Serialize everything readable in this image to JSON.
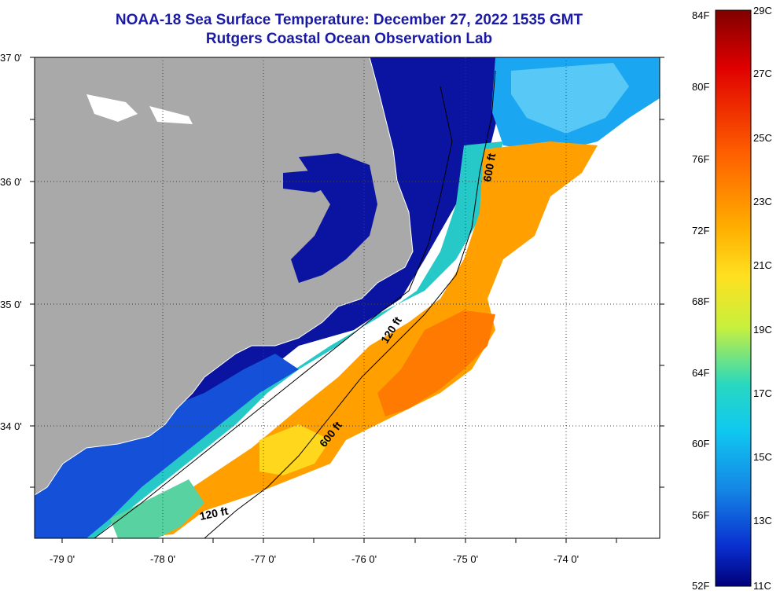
{
  "title": {
    "line1": "NOAA-18 Sea Surface Temperature:  December 27, 2022 1535 GMT",
    "line2": "Rutgers Coastal Ocean Observation Lab"
  },
  "axes": {
    "lat_labels": [
      "37 0'",
      "36 0'",
      "35 0'",
      "34 0'"
    ],
    "lon_labels": [
      "-79 0'",
      "-78 0'",
      "-77 0'",
      "-76 0'",
      "-75 0'",
      "-74 0'"
    ],
    "lat_range": [
      33.0,
      37.0
    ],
    "lon_range": [
      -79.3,
      -73.1
    ],
    "grid": "dotted"
  },
  "contours": {
    "label_120_upper": "120 ft",
    "label_600_upper": "600 ft",
    "label_600_lower": "600 ft",
    "label_120_lower": "120 ft"
  },
  "colorbar": {
    "fahrenheit": [
      "84F",
      "80F",
      "76F",
      "72F",
      "68F",
      "64F",
      "60F",
      "56F",
      "52F"
    ],
    "celsius": [
      "29C",
      "27C",
      "25C",
      "23C",
      "21C",
      "19C",
      "17C",
      "15C",
      "13C",
      "11C"
    ],
    "range_c": [
      11,
      29
    ],
    "colors": [
      "#8b0000",
      "#e00000",
      "#ff5a00",
      "#ff9a00",
      "#ffd21e",
      "#e6f51e",
      "#8ee85a",
      "#2ed6b4",
      "#14c8ee",
      "#148ce6",
      "#0a3cdc",
      "#00008c"
    ]
  },
  "legend": {
    "land_color": "#a9a9a9",
    "cloud_color": "#ffffff"
  }
}
